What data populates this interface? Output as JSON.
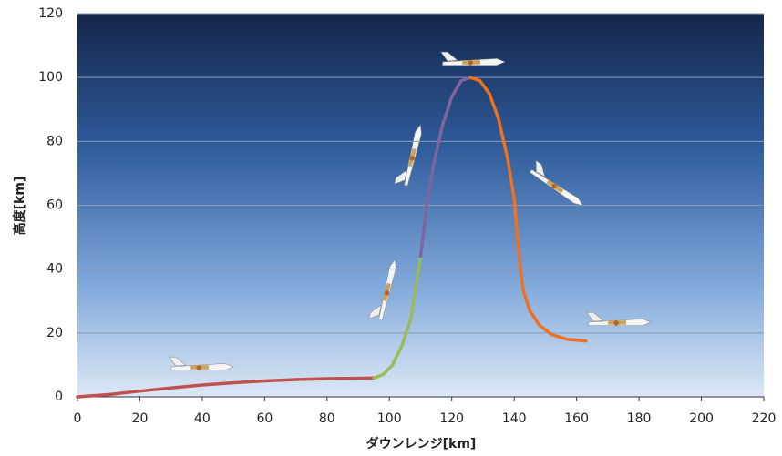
{
  "chart_data": {
    "type": "line",
    "xlabel": "ダウンレンジ[km]",
    "ylabel": "高度[km]",
    "xlim": [
      0,
      220
    ],
    "xticks": [
      0,
      20,
      40,
      60,
      80,
      100,
      120,
      140,
      160,
      180,
      200,
      220
    ],
    "ylim": [
      0,
      120
    ],
    "yticks": [
      0,
      20,
      40,
      60,
      80,
      100,
      120
    ],
    "grid": true,
    "series": [
      {
        "color": "#c0504d",
        "x": [
          0,
          10,
          20,
          30,
          40,
          50,
          60,
          70,
          80,
          90,
          95
        ],
        "values": [
          0,
          0.7,
          1.8,
          2.8,
          3.7,
          4.4,
          5,
          5.4,
          5.7,
          5.8,
          5.9
        ]
      },
      {
        "color": "#9bbb59",
        "x": [
          95,
          98,
          101,
          104,
          107,
          110
        ],
        "values": [
          5.9,
          7,
          10,
          16,
          25,
          44
        ]
      },
      {
        "color": "#8064a2",
        "x": [
          110,
          112,
          114,
          117,
          120,
          123,
          126
        ],
        "values": [
          44,
          60,
          72,
          85,
          94,
          99,
          100
        ]
      },
      {
        "color": "#f07020",
        "x": [
          126,
          129,
          132,
          135,
          138,
          140,
          141,
          142,
          143,
          145,
          148,
          152,
          157,
          163
        ],
        "values": [
          100,
          99,
          95,
          87,
          74,
          62,
          50,
          40,
          33,
          27,
          22.5,
          19.5,
          18,
          17.5
        ]
      }
    ]
  }
}
